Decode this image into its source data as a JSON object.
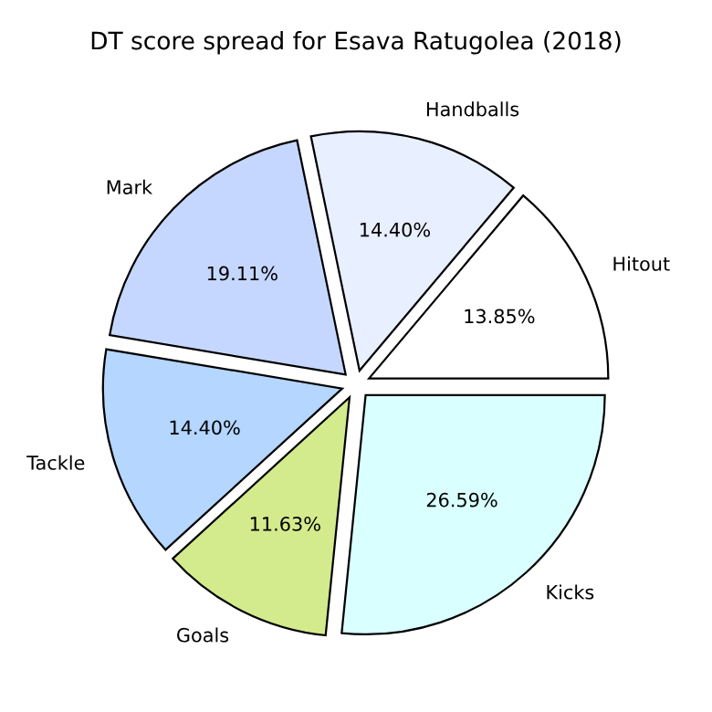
{
  "chart_data": {
    "type": "pie",
    "title": "DT score spread for Esava Ratugolea (2018)",
    "categories": [
      "Hitout",
      "Handballs",
      "Mark",
      "Tackle",
      "Goals",
      "Kicks"
    ],
    "values": [
      13.85,
      14.4,
      19.11,
      14.4,
      11.63,
      26.59
    ],
    "value_labels": [
      "13.85%",
      "14.40%",
      "19.11%",
      "14.40%",
      "11.63%",
      "26.59%"
    ],
    "colors": [
      "#ffffff",
      "#e8efff",
      "#c6d7ff",
      "#b4d6ff",
      "#d3eb8c",
      "#d9ffff"
    ]
  }
}
